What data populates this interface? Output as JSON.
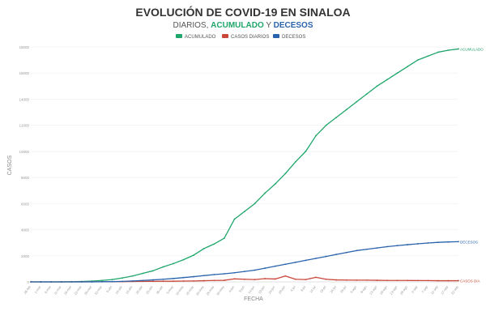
{
  "chart_data": {
    "type": "line",
    "title": "EVOLUCIÓN DE COVID-19 EN SINALOA",
    "subtitle_parts": [
      {
        "text": "DIARIOS, ",
        "color": "#555555",
        "bold": false
      },
      {
        "text": "ACUMULADO",
        "color": "#1fa66b",
        "bold": true
      },
      {
        "text": " Y ",
        "color": "#555555",
        "bold": false
      },
      {
        "text": "DECESOS",
        "color": "#2a63ad",
        "bold": true
      }
    ],
    "xlabel": "FECHA",
    "ylabel": "CASOS",
    "ylim": [
      0,
      18000
    ],
    "yticks": [
      0,
      2000,
      4000,
      6000,
      8000,
      10000,
      12000,
      14000,
      16000,
      18000
    ],
    "ytick_labels": [
      "0",
      "2000",
      "4000",
      "6000",
      "8000",
      "10000",
      "12000",
      "14000",
      "16000",
      "18000"
    ],
    "x_dates": [
      "26-feb",
      "1-mar",
      "6-mar",
      "11-mar",
      "16-mar",
      "21-mar",
      "26-mar",
      "31-mar",
      "5-abr",
      "10-abr",
      "15-abr",
      "20-abr",
      "25-abr",
      "30-abr",
      "5-may",
      "10-may",
      "15-may",
      "20-may",
      "25-may",
      "30-may",
      "4-jun",
      "9-jun",
      "14-jun",
      "19-jun",
      "24-jun",
      "29-jun",
      "4-jul",
      "9-jul",
      "14-jul",
      "19-jul",
      "24-jul",
      "29-jul",
      "3-ago",
      "8-ago",
      "13-ago",
      "18-ago",
      "23-ago",
      "28-ago",
      "2-sep",
      "7-sep",
      "12-sep",
      "17-sep",
      "22-sep"
    ],
    "legend": [
      {
        "label": "ACUMULADO",
        "color": "#1fa66b"
      },
      {
        "label": "CASOS DIARIOS",
        "color": "#c9473a"
      },
      {
        "label": "DECESOS",
        "color": "#2a63ad"
      }
    ],
    "series": [
      {
        "name": "ACUMULADO",
        "color": "#1fa66b",
        "end_label": "ACUMULADO",
        "values": [
          0,
          0,
          2,
          5,
          12,
          30,
          60,
          110,
          180,
          300,
          450,
          650,
          850,
          1150,
          1400,
          1700,
          2050,
          2550,
          2900,
          3350,
          4800,
          5400,
          6000,
          6800,
          7500,
          8300,
          9200,
          10000,
          11200,
          12000,
          12600,
          13200,
          13800,
          14400,
          15000,
          15500,
          16000,
          16500,
          17000,
          17300,
          17600,
          17750,
          17850
        ]
      },
      {
        "name": "CASOS DIARIOS",
        "color": "#c9473a",
        "end_label": "CASOS DIA",
        "values": [
          0,
          0,
          1,
          1,
          2,
          4,
          6,
          10,
          15,
          20,
          30,
          40,
          40,
          50,
          50,
          60,
          70,
          90,
          110,
          120,
          230,
          200,
          180,
          250,
          220,
          450,
          200,
          180,
          350,
          200,
          150,
          140,
          130,
          130,
          120,
          110,
          110,
          110,
          100,
          100,
          90,
          90,
          90
        ]
      },
      {
        "name": "DECESOS",
        "color": "#2a63ad",
        "end_label": "DECESOS",
        "values": [
          0,
          0,
          0,
          0,
          1,
          3,
          5,
          10,
          20,
          40,
          70,
          110,
          150,
          200,
          260,
          330,
          400,
          480,
          560,
          620,
          700,
          800,
          900,
          1050,
          1200,
          1350,
          1500,
          1650,
          1800,
          1950,
          2100,
          2250,
          2400,
          2500,
          2600,
          2700,
          2780,
          2850,
          2920,
          2980,
          3030,
          3060,
          3080
        ]
      }
    ]
  }
}
